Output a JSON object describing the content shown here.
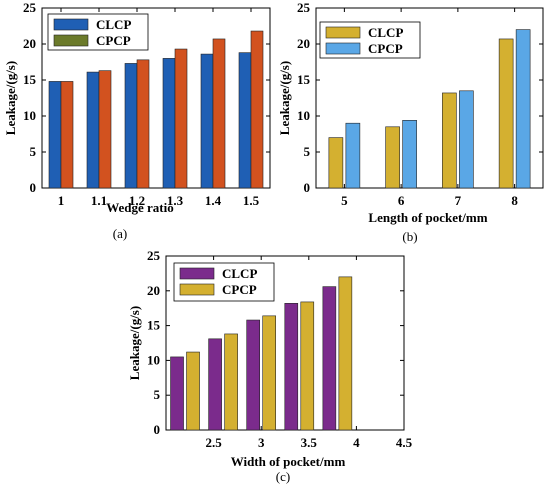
{
  "chart_data": [
    {
      "type": "bar",
      "caption": "(a)",
      "xlabel": "Wedge ratio",
      "ylabel": "Leakage/(g/s)",
      "ylim": [
        0,
        25
      ],
      "yticks": [
        "0",
        "5",
        "10",
        "15",
        "20",
        "25"
      ],
      "categories": [
        "1",
        "1.1",
        "1.2",
        "1.3",
        "1.4",
        "1.5"
      ],
      "legend_position": "top-left",
      "series": [
        {
          "name": "CLCP",
          "color": "#1f5fb4",
          "values": [
            14.8,
            16.1,
            17.3,
            18.0,
            18.6,
            18.8
          ]
        },
        {
          "name": "CPCP",
          "color": "#d2521f",
          "values": [
            14.8,
            16.3,
            17.8,
            19.3,
            20.7,
            21.8
          ]
        }
      ],
      "legend_colors": [
        "#1f5fb4",
        "#6b7a2a"
      ],
      "grid": false
    },
    {
      "type": "bar",
      "caption": "(b)",
      "xlabel": "Length of pocket/mm",
      "ylabel": "Leakage/(g/s)",
      "ylim": [
        0,
        25
      ],
      "yticks": [
        "0",
        "5",
        "10",
        "15",
        "20",
        "25"
      ],
      "categories": [
        "5",
        "6",
        "7",
        "8"
      ],
      "legend_position": "top-left",
      "series": [
        {
          "name": "CLCP",
          "color": "#d4b030",
          "values": [
            7.0,
            8.5,
            13.2,
            20.7
          ]
        },
        {
          "name": "CPCP",
          "color": "#5aa7e6",
          "values": [
            9.0,
            9.4,
            13.5,
            22.0
          ]
        }
      ],
      "grid": false
    },
    {
      "type": "bar",
      "caption": "(c)",
      "xlabel": "Width of pocket/mm",
      "ylabel": "Leakage/(g/s)",
      "ylim": [
        0,
        25
      ],
      "yticks": [
        "0",
        "5",
        "10",
        "15",
        "20",
        "25"
      ],
      "xlim": [
        2,
        4.5
      ],
      "xticks": [
        "2.5",
        "3",
        "3.5",
        "4",
        "4.5"
      ],
      "x": [
        2.2,
        2.6,
        3.0,
        3.4,
        3.8
      ],
      "legend_position": "top-left",
      "series": [
        {
          "name": "CLCP",
          "color": "#7b2b8c",
          "values": [
            10.5,
            13.1,
            15.8,
            18.2,
            20.6
          ]
        },
        {
          "name": "CPCP",
          "color": "#d4b030",
          "values": [
            11.2,
            13.8,
            16.4,
            18.4,
            22.0
          ]
        }
      ],
      "grid": false
    }
  ]
}
